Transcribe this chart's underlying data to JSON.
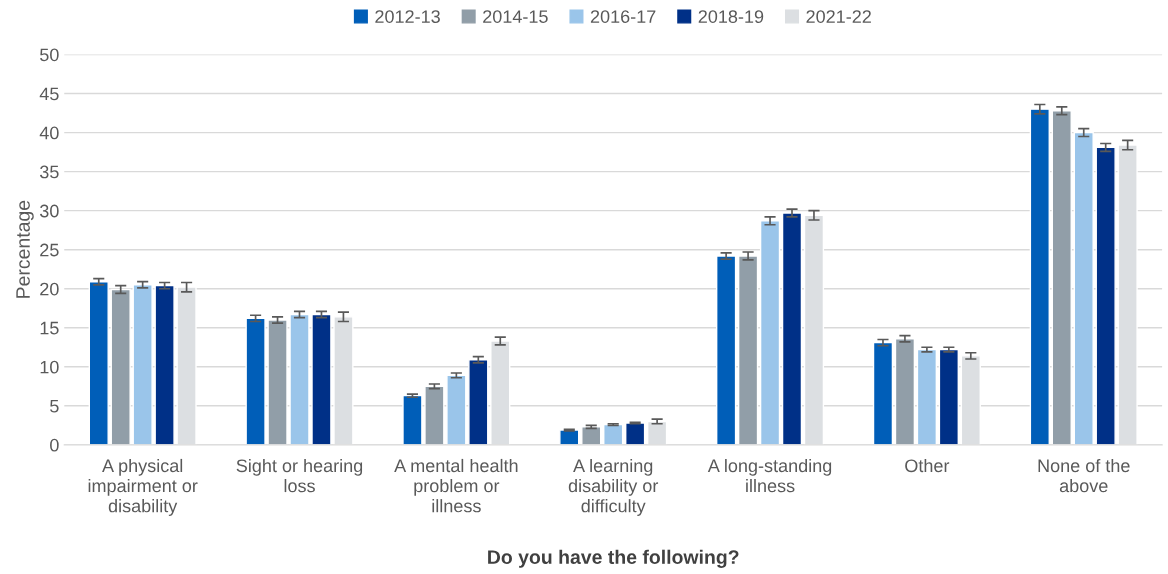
{
  "chart_data": {
    "type": "bar",
    "xlabel": "Do you have the following?",
    "ylabel": "Percentage",
    "categories": [
      "A physical impairment or disability",
      "Sight or hearing loss",
      "A mental health problem or illness",
      "A learning disability or difficulty",
      "A long-standing illness",
      "Other",
      "None of the above"
    ],
    "series": [
      {
        "name": "2012-13",
        "color": "#005eb8",
        "values": [
          20.9,
          16.2,
          6.3,
          1.9,
          24.2,
          13.1,
          43.0
        ],
        "errors": [
          0.4,
          0.4,
          0.2,
          0.1,
          0.4,
          0.4,
          0.6
        ]
      },
      {
        "name": "2014-15",
        "color": "#919ea8",
        "values": [
          19.9,
          16.0,
          7.5,
          2.3,
          24.2,
          13.6,
          42.8
        ],
        "errors": [
          0.5,
          0.4,
          0.3,
          0.2,
          0.5,
          0.4,
          0.5
        ]
      },
      {
        "name": "2016-17",
        "color": "#9ac5ea",
        "values": [
          20.5,
          16.7,
          8.9,
          2.6,
          28.7,
          12.2,
          40.0
        ],
        "errors": [
          0.4,
          0.4,
          0.3,
          0.1,
          0.5,
          0.3,
          0.5
        ]
      },
      {
        "name": "2018-19",
        "color": "#003087",
        "values": [
          20.4,
          16.7,
          10.9,
          2.8,
          29.7,
          12.2,
          38.1
        ],
        "errors": [
          0.4,
          0.4,
          0.4,
          0.1,
          0.5,
          0.3,
          0.5
        ]
      },
      {
        "name": "2021-22",
        "color": "#dcdfe2",
        "values": [
          20.2,
          16.4,
          13.3,
          3.0,
          29.4,
          11.4,
          38.4
        ],
        "errors": [
          0.6,
          0.6,
          0.5,
          0.3,
          0.6,
          0.4,
          0.6
        ]
      }
    ],
    "ylim": [
      0,
      50
    ],
    "yticks": [
      0,
      5,
      10,
      15,
      20,
      25,
      30,
      35,
      40,
      45,
      50
    ],
    "grid": "y",
    "legend": "top"
  }
}
